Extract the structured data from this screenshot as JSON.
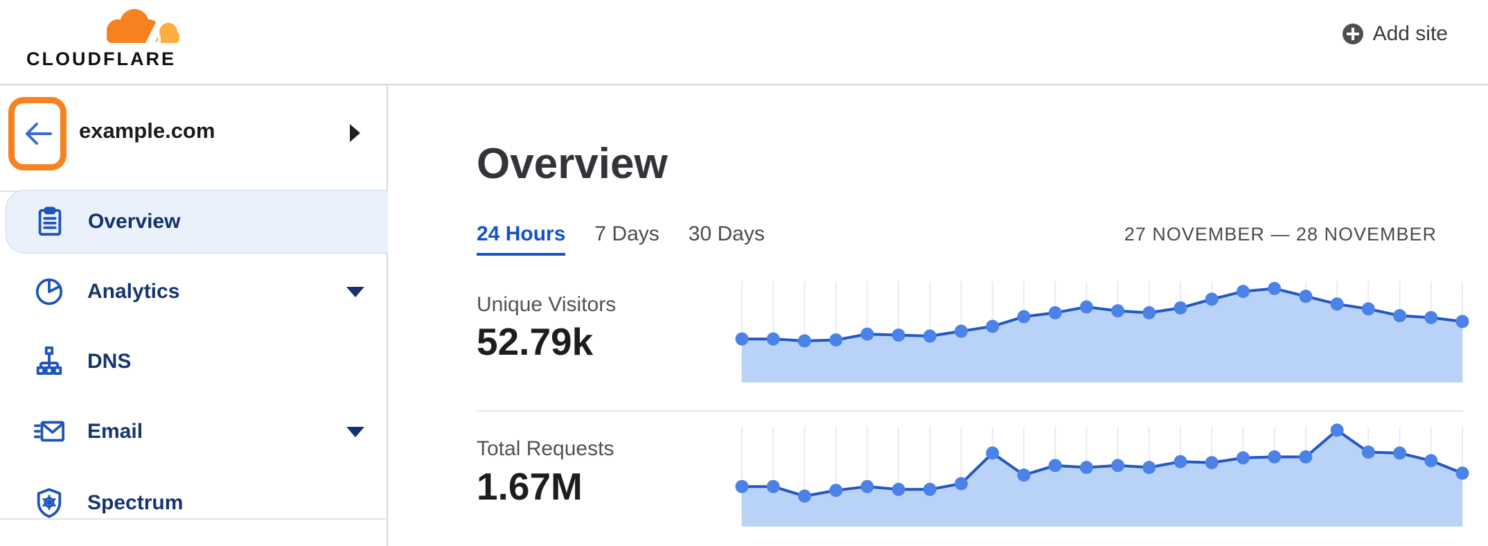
{
  "header": {
    "brand": "CLOUDFLARE",
    "add_site_label": "Add site"
  },
  "sidebar": {
    "site_name": "example.com",
    "items": [
      {
        "label": "Overview",
        "icon": "clipboard-icon",
        "active": true,
        "has_caret": false
      },
      {
        "label": "Analytics",
        "icon": "pie-chart-icon",
        "active": false,
        "has_caret": true
      },
      {
        "label": "DNS",
        "icon": "dns-tree-icon",
        "active": false,
        "has_caret": false
      },
      {
        "label": "Email",
        "icon": "email-icon",
        "active": false,
        "has_caret": true
      },
      {
        "label": "Spectrum",
        "icon": "shield-icon",
        "active": false,
        "has_caret": false
      }
    ]
  },
  "main": {
    "title": "Overview",
    "tabs": [
      {
        "label": "24 Hours",
        "active": true
      },
      {
        "label": "7 Days",
        "active": false
      },
      {
        "label": "30 Days",
        "active": false
      }
    ],
    "date_range": "27 NOVEMBER — 28 NOVEMBER",
    "metrics": [
      {
        "label": "Unique Visitors",
        "value": "52.79k"
      },
      {
        "label": "Total Requests",
        "value": "1.67M"
      }
    ]
  },
  "colors": {
    "brand_orange": "#f6821f",
    "brand_orange_light": "#fbad41",
    "link_blue": "#1253c8",
    "nav_text_navy": "#16356e",
    "nav_icon_blue": "#1d55bb",
    "active_item_bg": "#eaf1fb",
    "chart_dot": "#4a82e8",
    "chart_line": "#2257c5",
    "chart_fill": "#b9d3f8",
    "chart_grid": "#e9ebf3",
    "divider_gray": "#e2e2e2",
    "back_arrow_blue": "#3b6ad1"
  },
  "chart_data": [
    {
      "type": "area",
      "title": "Unique Visitors",
      "total_shown": "52.79k",
      "points": 24,
      "x_axis": "24 hourly intervals, unlabeled (27 Nov – 28 Nov)",
      "values_normalized_0_100": true,
      "values": [
        42,
        42,
        40,
        41,
        47,
        46,
        45,
        50,
        55,
        65,
        69,
        75,
        71,
        69,
        74,
        83,
        91,
        94,
        86,
        78,
        73,
        66,
        64,
        60
      ],
      "ylim": [
        0,
        100
      ],
      "grid": "vertical-only",
      "legend": "none"
    },
    {
      "type": "area",
      "title": "Total Requests",
      "total_shown": "1.67M",
      "points": 24,
      "x_axis": "24 hourly intervals, unlabeled (27 Nov – 28 Nov)",
      "values_normalized_0_100": true,
      "values": [
        39,
        39,
        29,
        35,
        39,
        36,
        36,
        42,
        74,
        51,
        61,
        59,
        61,
        59,
        65,
        64,
        69,
        70,
        70,
        98,
        75,
        74,
        66,
        53
      ],
      "ylim": [
        0,
        100
      ],
      "grid": "vertical-only",
      "legend": "none"
    }
  ]
}
